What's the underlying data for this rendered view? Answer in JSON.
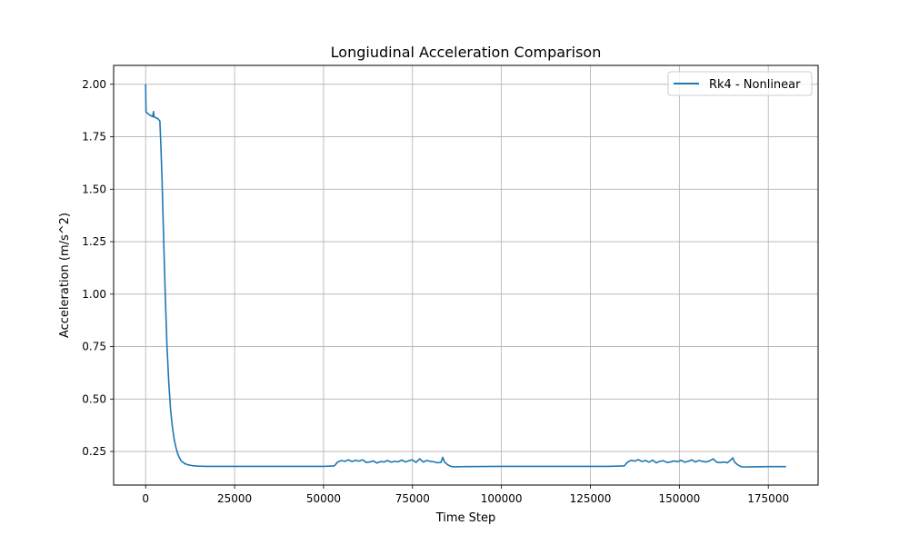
{
  "chart_data": {
    "type": "line",
    "title": "Longiudinal Acceleration Comparison",
    "xlabel": "Time Step",
    "ylabel": "Acceleration (m/s^2)",
    "xlim": [
      -9000,
      189000
    ],
    "ylim": [
      0.09,
      2.09
    ],
    "xticks": [
      0,
      25000,
      50000,
      75000,
      100000,
      125000,
      150000,
      175000
    ],
    "xtick_labels": [
      "0",
      "25000",
      "50000",
      "75000",
      "100000",
      "125000",
      "150000",
      "175000"
    ],
    "yticks": [
      0.25,
      0.5,
      0.75,
      1.0,
      1.25,
      1.5,
      1.75,
      2.0
    ],
    "ytick_labels": [
      "0.25",
      "0.50",
      "0.75",
      "1.00",
      "1.25",
      "1.50",
      "1.75",
      "2.00"
    ],
    "grid": true,
    "legend_position": "top-right",
    "series": [
      {
        "name": "Rk4 - Nonlinear",
        "color": "#1f77b4",
        "x": [
          0,
          100,
          300,
          1000,
          2000,
          2200,
          2400,
          2600,
          3000,
          3500,
          4000,
          4300,
          4600,
          5000,
          5500,
          6000,
          6500,
          7000,
          7500,
          8000,
          8500,
          9000,
          9500,
          10000,
          11000,
          12000,
          13000,
          14000,
          15000,
          17000,
          20000,
          30000,
          40000,
          50000,
          53000,
          54000,
          55000,
          56000,
          57000,
          58000,
          59000,
          60000,
          61000,
          62000,
          63000,
          64000,
          65000,
          66000,
          67000,
          68000,
          69000,
          70000,
          71000,
          72000,
          73000,
          74000,
          75000,
          76000,
          77000,
          78000,
          79000,
          80000,
          81000,
          82000,
          83000,
          83500,
          84000,
          85000,
          86000,
          87000,
          90000,
          100000,
          110000,
          120000,
          130000,
          134500,
          135500,
          136500,
          137500,
          138500,
          139500,
          140500,
          141500,
          142500,
          143500,
          144500,
          145500,
          146500,
          147500,
          148500,
          149500,
          150500,
          151500,
          152500,
          153500,
          154500,
          155500,
          156500,
          157500,
          158500,
          159500,
          160500,
          161500,
          162500,
          163500,
          164500,
          165000,
          165500,
          166500,
          167500,
          168500,
          170000,
          175000,
          180000
        ],
        "y": [
          2.0,
          1.87,
          1.865,
          1.855,
          1.845,
          1.87,
          1.845,
          1.842,
          1.84,
          1.835,
          1.825,
          1.7,
          1.55,
          1.3,
          1.0,
          0.75,
          0.58,
          0.45,
          0.37,
          0.31,
          0.27,
          0.24,
          0.22,
          0.205,
          0.192,
          0.186,
          0.183,
          0.181,
          0.18,
          0.179,
          0.179,
          0.179,
          0.179,
          0.179,
          0.181,
          0.2,
          0.207,
          0.203,
          0.21,
          0.202,
          0.208,
          0.204,
          0.21,
          0.198,
          0.2,
          0.205,
          0.195,
          0.202,
          0.2,
          0.207,
          0.199,
          0.203,
          0.201,
          0.209,
          0.2,
          0.206,
          0.21,
          0.198,
          0.215,
          0.2,
          0.207,
          0.203,
          0.201,
          0.196,
          0.198,
          0.222,
          0.2,
          0.185,
          0.178,
          0.177,
          0.178,
          0.179,
          0.179,
          0.179,
          0.179,
          0.181,
          0.2,
          0.208,
          0.204,
          0.211,
          0.202,
          0.207,
          0.199,
          0.209,
          0.196,
          0.203,
          0.206,
          0.198,
          0.2,
          0.205,
          0.201,
          0.208,
          0.199,
          0.203,
          0.21,
          0.2,
          0.207,
          0.203,
          0.2,
          0.205,
          0.215,
          0.199,
          0.197,
          0.2,
          0.196,
          0.21,
          0.22,
          0.2,
          0.185,
          0.177,
          0.176,
          0.177,
          0.178,
          0.178
        ]
      }
    ]
  }
}
